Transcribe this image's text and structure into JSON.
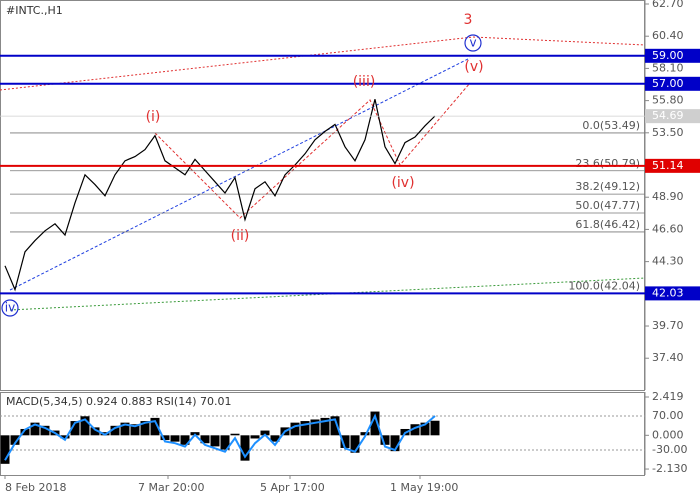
{
  "chart_data": [
    {
      "type": "line",
      "title": "#INTC.,H1",
      "color": "#000000",
      "xlim": [
        -0.5,
        64
      ],
      "ylim": [
        35.13,
        62.986
      ],
      "yticks": [
        {
          "value": 62.7,
          "label": "62.70"
        },
        {
          "value": 60.4,
          "label": "60.40"
        },
        {
          "value": 58.1,
          "label": "58.10"
        },
        {
          "value": 55.8,
          "label": "55.80"
        },
        {
          "value": 53.5,
          "label": "53.50"
        },
        {
          "value": 48.9,
          "label": "48.90"
        },
        {
          "value": 46.6,
          "label": "46.60"
        },
        {
          "value": 44.3,
          "label": "44.30"
        },
        {
          "value": 39.7,
          "label": "39.70"
        },
        {
          "value": 37.4,
          "label": "37.40"
        }
      ],
      "values": [
        44.0,
        42.3,
        45.0,
        45.8,
        46.5,
        47.0,
        46.2,
        48.5,
        50.5,
        49.8,
        49.0,
        50.5,
        51.5,
        51.8,
        52.3,
        53.3,
        51.5,
        51.0,
        50.5,
        51.6,
        50.8,
        50.0,
        49.2,
        50.3,
        47.3,
        49.5,
        50.0,
        49.0,
        50.5,
        51.2,
        52.0,
        53.0,
        53.6,
        54.1,
        52.5,
        51.5,
        53.0,
        55.9,
        52.5,
        51.3,
        52.8,
        53.2,
        54.0,
        54.7
      ],
      "hlines": [
        {
          "value": 59,
          "label": "59.00",
          "color": "#0000c8"
        },
        {
          "value": 57,
          "label": "57.00",
          "color": "#0000c8"
        },
        {
          "value": 51.14,
          "label": "51.14",
          "color": "#e00000"
        },
        {
          "value": 42.03,
          "label": "42.03",
          "color": "#0000c8"
        }
      ],
      "price_label": {
        "value": 54.69,
        "color": "#cfcfcf"
      },
      "fib_levels": [
        {
          "value": 53.49,
          "label": "0.0(53.49)"
        },
        {
          "value": 50.79,
          "label": "23.6(50.79)"
        },
        {
          "value": 49.12,
          "label": "38.2(49.12)"
        },
        {
          "value": 47.77,
          "label": "50.0(47.77)"
        },
        {
          "value": 46.42,
          "label": "61.8(46.42)"
        },
        {
          "value": 42.04,
          "label": "100.0(42.04)"
        }
      ],
      "wave_labels": [
        "(i)",
        "(ii)",
        "(iii)",
        "(iv)",
        "(v)",
        "3",
        "v",
        "iv"
      ]
    },
    {
      "type": "macd",
      "macd_label": "MACD(5,34,5)",
      "macd_values": [
        0.924,
        0.883
      ],
      "rsi_label": "RSI(14)",
      "rsi_value": 70.01,
      "xlim": [
        -0.5,
        64
      ],
      "xticks": [
        {
          "value": 0,
          "label": "8 Feb 2018"
        },
        {
          "value": 16.3,
          "label": "7 Mar 20:00"
        },
        {
          "value": 28.5,
          "label": "5 Apr 17:00"
        },
        {
          "value": 41.5,
          "label": "1 May 19:00"
        }
      ],
      "ylim": [
        -2.5058,
        2.7348
      ],
      "yticks": [
        2.419,
        {
          "value": 0,
          "label": "0.000"
        },
        {
          "value": -2.13,
          "label": "-2.130"
        }
      ],
      "y2lim": [
        -103.5,
        140.6
      ],
      "y2ticks": [
        {
          "value": 70,
          "label": "70.00"
        },
        {
          "value": -30,
          "label": "-30.00"
        }
      ],
      "series": [
        {
          "color": "#000000",
          "values": [
            -1.8,
            -0.6,
            0.4,
            0.8,
            0.6,
            0.3,
            -0.2,
            0.9,
            1.2,
            0.5,
            0.2,
            0.6,
            0.8,
            0.7,
            0.9,
            1.1,
            -0.3,
            -0.4,
            -0.6,
            0.2,
            -0.5,
            -0.7,
            -0.9,
            0.1,
            -1.6,
            -0.2,
            0.3,
            -0.4,
            0.5,
            0.8,
            0.9,
            1.0,
            1.1,
            1.2,
            -0.8,
            -1.1,
            0.2,
            1.5,
            -0.6,
            -1.0,
            0.4,
            0.7,
            0.8,
            0.92
          ]
        },
        {
          "color": "#1e90ff",
          "axis": "y2",
          "values": [
            -60,
            -10,
            30,
            45,
            35,
            20,
            0,
            50,
            60,
            30,
            15,
            35,
            45,
            40,
            50,
            55,
            -5,
            -10,
            -20,
            15,
            -15,
            -25,
            -35,
            5,
            -50,
            -10,
            15,
            -15,
            25,
            40,
            45,
            50,
            55,
            60,
            -25,
            -35,
            10,
            70,
            -20,
            -30,
            20,
            35,
            45,
            70
          ]
        }
      ]
    }
  ]
}
